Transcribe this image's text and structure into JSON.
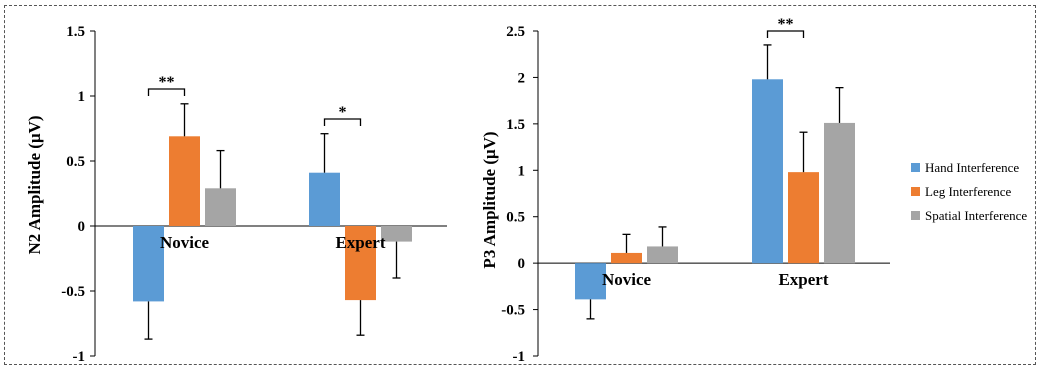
{
  "legend": {
    "position": "right",
    "entries": [
      {
        "name": "Hand Interference",
        "color": "#5b9bd5"
      },
      {
        "name": "Leg Interference",
        "color": "#ed7d31"
      },
      {
        "name": "Spatial Interference",
        "color": "#a5a5a5"
      }
    ]
  },
  "chart_data": [
    {
      "type": "bar",
      "ylabel": "N2 Amplitude (μV)",
      "ylim": [
        -1,
        1.5
      ],
      "yticks": [
        "1.5",
        "1",
        "0.5",
        "0",
        "-0.5",
        "-1"
      ],
      "categories": [
        "Novice",
        "Expert"
      ],
      "series": [
        {
          "name": "Hand Interference",
          "color": "#5b9bd5",
          "values": [
            -0.58,
            0.41
          ],
          "errors": [
            0.29,
            0.3
          ]
        },
        {
          "name": "Leg Interference",
          "color": "#ed7d31",
          "values": [
            0.69,
            -0.57
          ],
          "errors": [
            0.25,
            0.27
          ]
        },
        {
          "name": "Spatial Interference",
          "color": "#a5a5a5",
          "values": [
            0.29,
            -0.12
          ],
          "errors": [
            0.29,
            0.28
          ]
        }
      ],
      "significance": [
        {
          "category": 0,
          "from_series": 0,
          "to_series": 1,
          "label": "**"
        },
        {
          "category": 1,
          "from_series": 0,
          "to_series": 1,
          "label": "*"
        }
      ]
    },
    {
      "type": "bar",
      "ylabel": "P3 Amplitude (μV)",
      "ylim": [
        -1,
        2.5
      ],
      "yticks": [
        "2.5",
        "2",
        "1.5",
        "1",
        "0.5",
        "0",
        "-0.5",
        "-1"
      ],
      "categories": [
        "Novice",
        "Expert"
      ],
      "series": [
        {
          "name": "Hand Interference",
          "color": "#5b9bd5",
          "values": [
            -0.39,
            1.98
          ],
          "errors": [
            0.21,
            0.37
          ]
        },
        {
          "name": "Leg Interference",
          "color": "#ed7d31",
          "values": [
            0.11,
            0.98
          ],
          "errors": [
            0.2,
            0.43
          ]
        },
        {
          "name": "Spatial Interference",
          "color": "#a5a5a5",
          "values": [
            0.18,
            1.51
          ],
          "errors": [
            0.21,
            0.38
          ]
        }
      ],
      "significance": [
        {
          "category": 1,
          "from_series": 0,
          "to_series": 1,
          "label": "**"
        }
      ]
    }
  ]
}
